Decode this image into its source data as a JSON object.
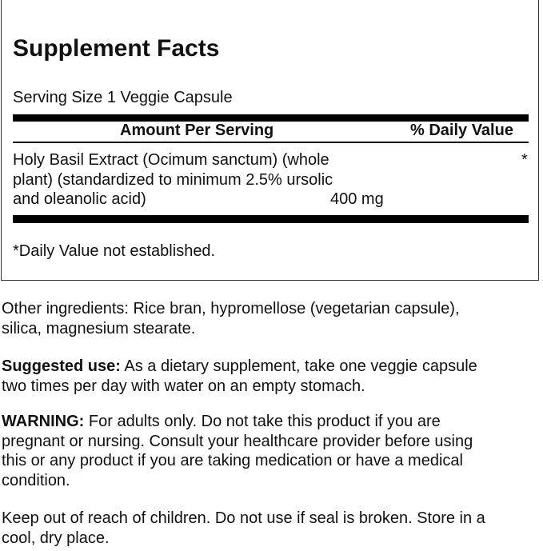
{
  "facts": {
    "title": "Supplement Facts",
    "serving_size": "Serving Size 1 Veggie Capsule",
    "header_amount": "Amount Per Serving",
    "header_dv": "% Daily Value",
    "ingredient": {
      "lines": [
        "Holy Basil Extract (Ocimum sanctum) (whole",
        "plant) (standardized to minimum 2.5% ursolic",
        "and oleanolic acid)"
      ],
      "amount": "400 mg",
      "dv": "*"
    },
    "footnote": "*Daily Value not established."
  },
  "other_ingredients": [
    "Other ingredients: Rice bran, hypromellose (vegetarian capsule),",
    "silica, magnesium stearate."
  ],
  "suggested_use": {
    "label": "Suggested use:",
    "lines": [
      " As a dietary supplement, take one veggie capsule",
      "two times per day with water on an empty stomach."
    ]
  },
  "warning": {
    "label": "WARNING:",
    "lines": [
      " For adults only. Do not take this product if you are",
      "pregnant or nursing. Consult your healthcare provider before using",
      "this or any product if you are taking medication or have a medical",
      "condition."
    ]
  },
  "storage": [
    "Keep out of reach of children. Do not use if seal is broken. Store in a",
    "cool, dry place."
  ]
}
